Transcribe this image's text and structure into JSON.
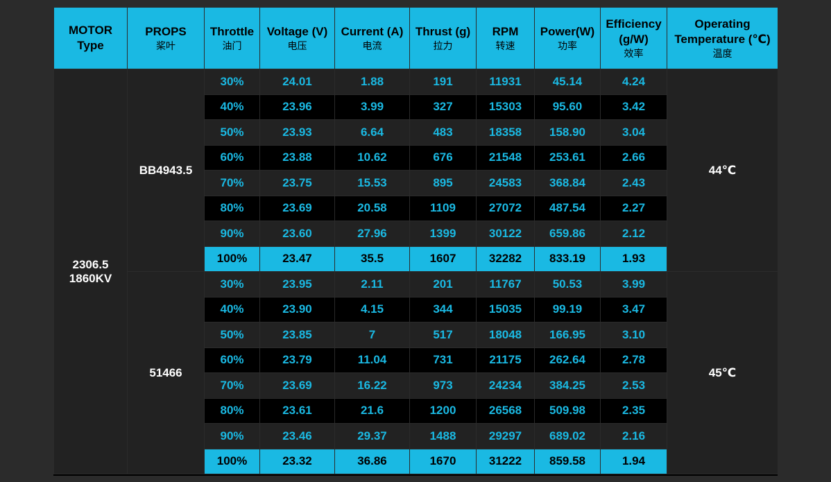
{
  "headers": [
    {
      "main": "MOTOR Type",
      "sub": ""
    },
    {
      "main": "PROPS",
      "sub": "桨叶"
    },
    {
      "main": "Throttle",
      "sub": "油门"
    },
    {
      "main": "Voltage (V)",
      "sub": "电压"
    },
    {
      "main": "Current (A)",
      "sub": "电流"
    },
    {
      "main": "Thrust (g)",
      "sub": "拉力"
    },
    {
      "main": "RPM",
      "sub": "转速"
    },
    {
      "main": "Power(W)",
      "sub": "功率"
    },
    {
      "main": "Efficiency (g/W)",
      "sub": "效率"
    },
    {
      "main": "Operating Temperature (℃)",
      "sub": "温度"
    }
  ],
  "motor": {
    "line1": "2306.5",
    "line2": "1860KV"
  },
  "groups": [
    {
      "prop": "BB4943.5",
      "temperature": "44℃",
      "rows": [
        [
          "30%",
          "24.01",
          "1.88",
          "191",
          "11931",
          "45.14",
          "4.24"
        ],
        [
          "40%",
          "23.96",
          "3.99",
          "327",
          "15303",
          "95.60",
          "3.42"
        ],
        [
          "50%",
          "23.93",
          "6.64",
          "483",
          "18358",
          "158.90",
          "3.04"
        ],
        [
          "60%",
          "23.88",
          "10.62",
          "676",
          "21548",
          "253.61",
          "2.66"
        ],
        [
          "70%",
          "23.75",
          "15.53",
          "895",
          "24583",
          "368.84",
          "2.43"
        ],
        [
          "80%",
          "23.69",
          "20.58",
          "1109",
          "27072",
          "487.54",
          "2.27"
        ],
        [
          "90%",
          "23.60",
          "27.96",
          "1399",
          "30122",
          "659.86",
          "2.12"
        ],
        [
          "100%",
          "23.47",
          "35.5",
          "1607",
          "32282",
          "833.19",
          "1.93"
        ]
      ]
    },
    {
      "prop": "51466",
      "temperature": "45℃",
      "rows": [
        [
          "30%",
          "23.95",
          "2.11",
          "201",
          "11767",
          "50.53",
          "3.99"
        ],
        [
          "40%",
          "23.90",
          "4.15",
          "344",
          "15035",
          "99.19",
          "3.47"
        ],
        [
          "50%",
          "23.85",
          "7",
          "517",
          "18048",
          "166.95",
          "3.10"
        ],
        [
          "60%",
          "23.79",
          "11.04",
          "731",
          "21175",
          "262.64",
          "2.78"
        ],
        [
          "70%",
          "23.69",
          "16.22",
          "973",
          "24234",
          "384.25",
          "2.53"
        ],
        [
          "80%",
          "23.61",
          "21.6",
          "1200",
          "26568",
          "509.98",
          "2.35"
        ],
        [
          "90%",
          "23.46",
          "29.37",
          "1488",
          "29297",
          "689.02",
          "2.16"
        ],
        [
          "100%",
          "23.32",
          "36.86",
          "1670",
          "31222",
          "859.58",
          "1.94"
        ]
      ]
    }
  ],
  "colors": {
    "accent": "#1ab9e3",
    "row_dark": "#222222",
    "row_black": "#000000",
    "background": "#2b2b2b"
  }
}
